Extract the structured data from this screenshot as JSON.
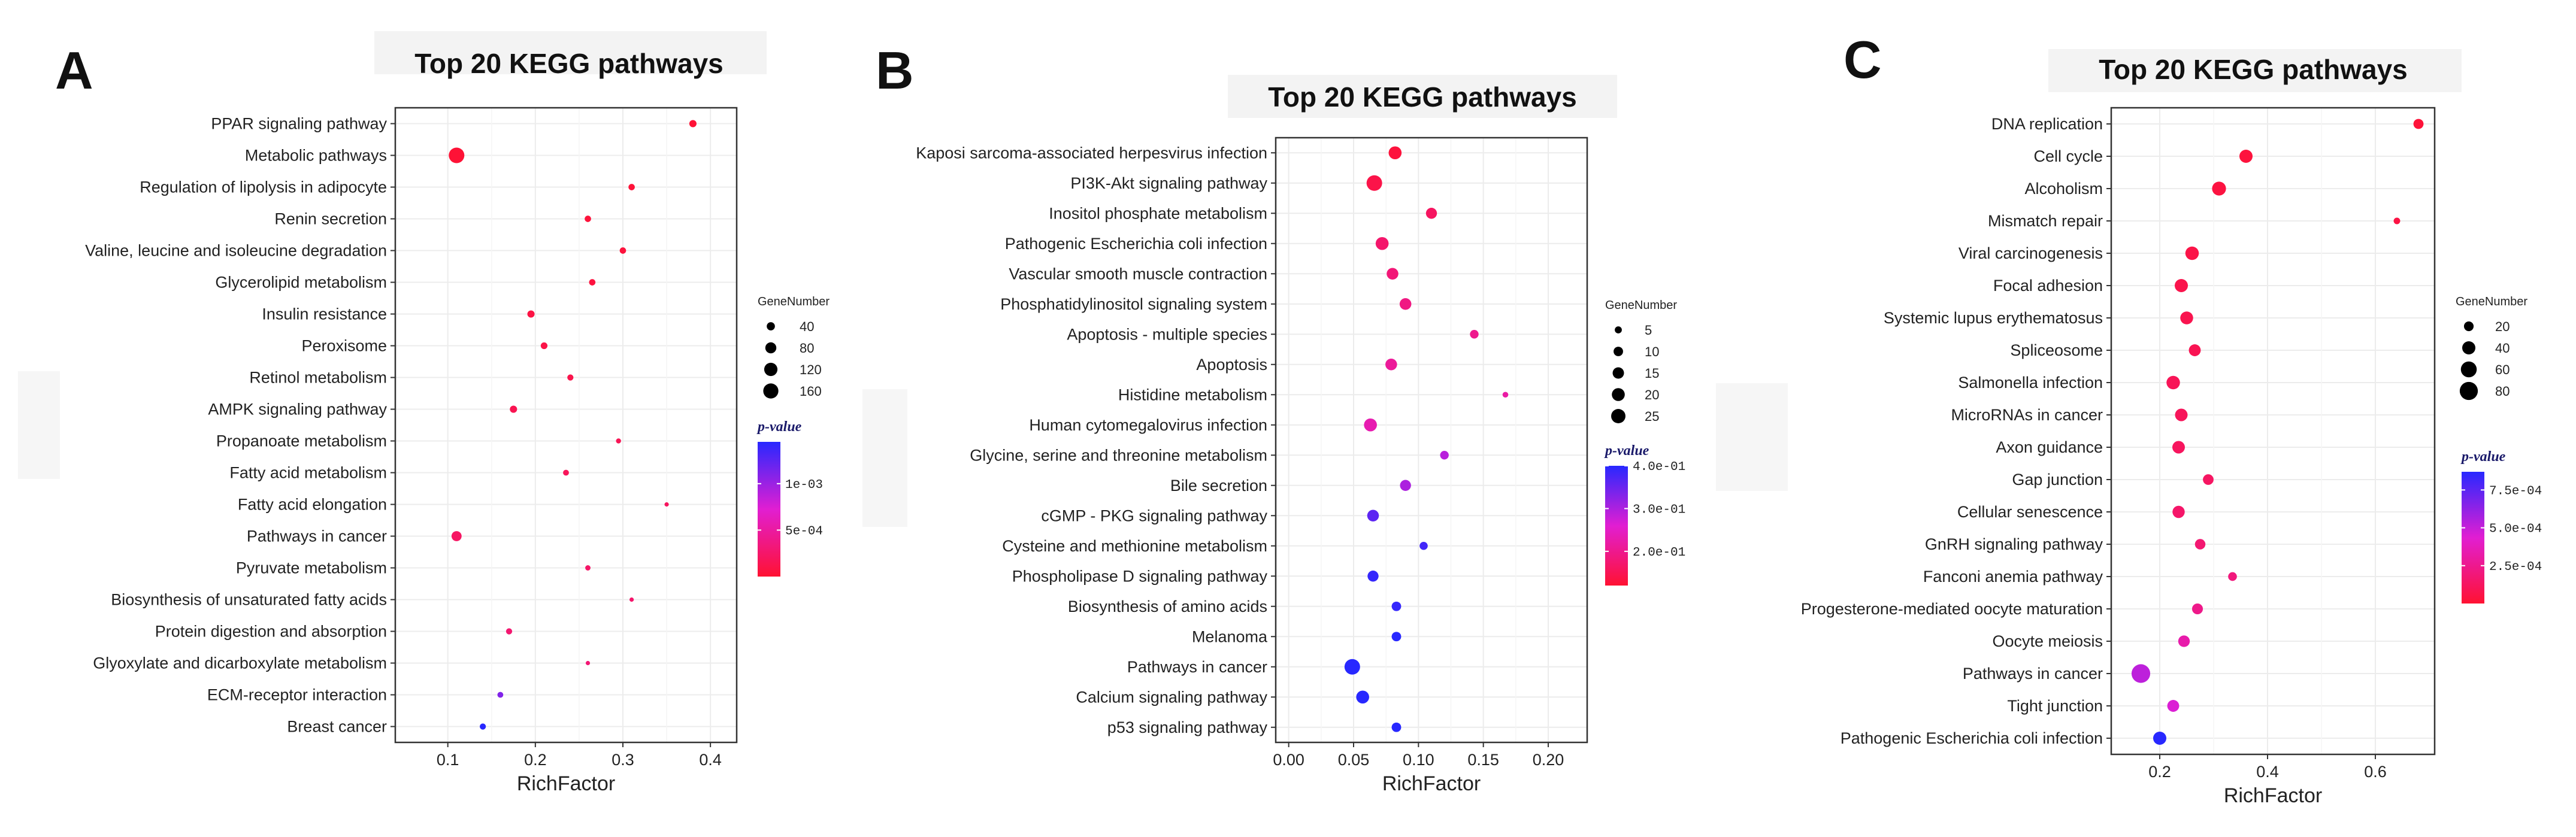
{
  "chart_data": [
    {
      "type": "scatter",
      "panel_label": "A",
      "title": "Top 20 KEGG pathways",
      "xlabel": "RichFactor",
      "ylabel": "",
      "xlim": [
        0.04,
        0.43
      ],
      "xticks": [
        "0.1",
        "0.2",
        "0.3",
        "0.4"
      ],
      "xtick_values": [
        0.1,
        0.2,
        0.3,
        0.4
      ],
      "size_legend": {
        "title": "GeneNumber",
        "values": [
          40,
          80,
          120,
          160
        ],
        "labels": [
          "40",
          "80",
          "120",
          "160"
        ]
      },
      "color_legend": {
        "title": "p-value",
        "min": 0,
        "max": 0.00145,
        "ticks": [
          0.0005,
          0.001
        ],
        "labels": [
          "5e-04",
          "1e-03"
        ]
      },
      "points": [
        {
          "pathway": "PPAR signaling pathway",
          "rich_factor": 0.38,
          "gene_number": 30,
          "p_value": 2e-05
        },
        {
          "pathway": "Metabolic pathways",
          "rich_factor": 0.11,
          "gene_number": 170,
          "p_value": 2e-05
        },
        {
          "pathway": "Regulation of lipolysis in adipocyte",
          "rich_factor": 0.31,
          "gene_number": 22,
          "p_value": 3e-05
        },
        {
          "pathway": "Renin secretion",
          "rich_factor": 0.26,
          "gene_number": 22,
          "p_value": 4e-05
        },
        {
          "pathway": "Valine, leucine and isoleucine degradation",
          "rich_factor": 0.3,
          "gene_number": 22,
          "p_value": 5e-05
        },
        {
          "pathway": "Glycerolipid metabolism",
          "rich_factor": 0.265,
          "gene_number": 22,
          "p_value": 6e-05
        },
        {
          "pathway": "Insulin resistance",
          "rich_factor": 0.195,
          "gene_number": 30,
          "p_value": 8e-05
        },
        {
          "pathway": "Peroxisome",
          "rich_factor": 0.21,
          "gene_number": 25,
          "p_value": 0.0001
        },
        {
          "pathway": "Retinol metabolism",
          "rich_factor": 0.24,
          "gene_number": 20,
          "p_value": 0.00012
        },
        {
          "pathway": "AMPK signaling pathway",
          "rich_factor": 0.175,
          "gene_number": 30,
          "p_value": 0.00014
        },
        {
          "pathway": "Propanoate metabolism",
          "rich_factor": 0.295,
          "gene_number": 12,
          "p_value": 0.00016
        },
        {
          "pathway": "Fatty acid metabolism",
          "rich_factor": 0.235,
          "gene_number": 18,
          "p_value": 0.00018
        },
        {
          "pathway": "Fatty acid elongation",
          "rich_factor": 0.35,
          "gene_number": 8,
          "p_value": 0.0002
        },
        {
          "pathway": "Pathways in cancer",
          "rich_factor": 0.11,
          "gene_number": 65,
          "p_value": 0.00022
        },
        {
          "pathway": "Pyruvate metabolism",
          "rich_factor": 0.26,
          "gene_number": 14,
          "p_value": 0.00024
        },
        {
          "pathway": "Biosynthesis of unsaturated fatty acids",
          "rich_factor": 0.31,
          "gene_number": 8,
          "p_value": 0.00026
        },
        {
          "pathway": "Protein digestion and absorption",
          "rich_factor": 0.17,
          "gene_number": 20,
          "p_value": 0.00028
        },
        {
          "pathway": "Glyoxylate and dicarboxylate metabolism",
          "rich_factor": 0.26,
          "gene_number": 8,
          "p_value": 0.0003
        },
        {
          "pathway": "ECM-receptor interaction",
          "rich_factor": 0.16,
          "gene_number": 18,
          "p_value": 0.0011
        },
        {
          "pathway": "Breast cancer",
          "rich_factor": 0.14,
          "gene_number": 20,
          "p_value": 0.00145
        }
      ]
    },
    {
      "type": "scatter",
      "panel_label": "B",
      "title": "Top 20 KEGG pathways",
      "xlabel": "RichFactor",
      "ylabel": "",
      "xlim": [
        -0.01,
        0.23
      ],
      "xticks": [
        "0.00",
        "0.05",
        "0.10",
        "0.15",
        "0.20"
      ],
      "xtick_values": [
        0,
        0.05,
        0.1,
        0.15,
        0.2
      ],
      "size_legend": {
        "title": "GeneNumber",
        "values": [
          5,
          10,
          15,
          20,
          25
        ],
        "labels": [
          "5",
          "10",
          "15",
          "20",
          "25"
        ]
      },
      "color_legend": {
        "title": "p-value",
        "min": 0.12,
        "max": 0.4,
        "ticks": [
          0.2,
          0.3,
          0.4
        ],
        "labels": [
          "2.0e-01",
          "3.0e-01",
          "4.0e-01"
        ]
      },
      "points": [
        {
          "pathway": "Kaposi sarcoma-associated herpesvirus infection",
          "rich_factor": 0.082,
          "gene_number": 20,
          "p_value": 0.13
        },
        {
          "pathway": "PI3K-Akt signaling pathway",
          "rich_factor": 0.066,
          "gene_number": 30,
          "p_value": 0.14
        },
        {
          "pathway": "Inositol phosphate metabolism",
          "rich_factor": 0.11,
          "gene_number": 14,
          "p_value": 0.16
        },
        {
          "pathway": "Pathogenic Escherichia coli infection",
          "rich_factor": 0.072,
          "gene_number": 20,
          "p_value": 0.17
        },
        {
          "pathway": "Vascular smooth muscle contraction",
          "rich_factor": 0.08,
          "gene_number": 16,
          "p_value": 0.18
        },
        {
          "pathway": "Phosphatidylinositol signaling system",
          "rich_factor": 0.09,
          "gene_number": 16,
          "p_value": 0.19
        },
        {
          "pathway": "Apoptosis - multiple species",
          "rich_factor": 0.143,
          "gene_number": 8,
          "p_value": 0.2
        },
        {
          "pathway": "Apoptosis",
          "rich_factor": 0.079,
          "gene_number": 16,
          "p_value": 0.21
        },
        {
          "pathway": "Histidine metabolism",
          "rich_factor": 0.167,
          "gene_number": 3,
          "p_value": 0.22
        },
        {
          "pathway": "Human cytomegalovirus infection",
          "rich_factor": 0.063,
          "gene_number": 20,
          "p_value": 0.23
        },
        {
          "pathway": "Glycine, serine and threonine metabolism",
          "rich_factor": 0.12,
          "gene_number": 8,
          "p_value": 0.29
        },
        {
          "pathway": "Bile secretion",
          "rich_factor": 0.09,
          "gene_number": 14,
          "p_value": 0.3
        },
        {
          "pathway": "cGMP - PKG signaling pathway",
          "rich_factor": 0.065,
          "gene_number": 16,
          "p_value": 0.36
        },
        {
          "pathway": "Cysteine and methionine metabolism",
          "rich_factor": 0.104,
          "gene_number": 7,
          "p_value": 0.38
        },
        {
          "pathway": "Phospholipase D signaling pathway",
          "rich_factor": 0.065,
          "gene_number": 14,
          "p_value": 0.39
        },
        {
          "pathway": "Biosynthesis of amino acids",
          "rich_factor": 0.083,
          "gene_number": 10,
          "p_value": 0.39
        },
        {
          "pathway": "Melanoma",
          "rich_factor": 0.083,
          "gene_number": 10,
          "p_value": 0.4
        },
        {
          "pathway": "Pathways in cancer",
          "rich_factor": 0.049,
          "gene_number": 30,
          "p_value": 0.4
        },
        {
          "pathway": "Calcium signaling pathway",
          "rich_factor": 0.057,
          "gene_number": 20,
          "p_value": 0.4
        },
        {
          "pathway": "p53 signaling pathway",
          "rich_factor": 0.083,
          "gene_number": 10,
          "p_value": 0.4
        }
      ]
    },
    {
      "type": "scatter",
      "panel_label": "C",
      "title": "Top 20 KEGG pathways",
      "xlabel": "RichFactor",
      "ylabel": "",
      "xlim": [
        0.11,
        0.71
      ],
      "xticks": [
        "0.2",
        "0.4",
        "0.6"
      ],
      "xtick_values": [
        0.2,
        0.4,
        0.6
      ],
      "size_legend": {
        "title": "GeneNumber",
        "values": [
          20,
          40,
          60,
          80
        ],
        "labels": [
          "20",
          "40",
          "60",
          "80"
        ]
      },
      "color_legend": {
        "title": "p-value",
        "min": 0,
        "max": 0.00087,
        "ticks": [
          0.00025,
          0.0005,
          0.00075
        ],
        "labels": [
          "2.5e-04",
          "5.0e-04",
          "7.5e-04"
        ]
      },
      "points": [
        {
          "pathway": "DNA replication",
          "rich_factor": 0.68,
          "gene_number": 22,
          "p_value": 2e-05
        },
        {
          "pathway": "Cell cycle",
          "rich_factor": 0.36,
          "gene_number": 40,
          "p_value": 3e-05
        },
        {
          "pathway": "Alcoholism",
          "rich_factor": 0.31,
          "gene_number": 45,
          "p_value": 4e-05
        },
        {
          "pathway": "Mismatch repair",
          "rich_factor": 0.64,
          "gene_number": 8,
          "p_value": 5e-05
        },
        {
          "pathway": "Viral carcinogenesis",
          "rich_factor": 0.26,
          "gene_number": 42,
          "p_value": 6e-05
        },
        {
          "pathway": "Focal adhesion",
          "rich_factor": 0.24,
          "gene_number": 40,
          "p_value": 7e-05
        },
        {
          "pathway": "Systemic lupus erythematosus",
          "rich_factor": 0.25,
          "gene_number": 38,
          "p_value": 8e-05
        },
        {
          "pathway": "Spliceosome",
          "rich_factor": 0.265,
          "gene_number": 32,
          "p_value": 9e-05
        },
        {
          "pathway": "Salmonella infection",
          "rich_factor": 0.225,
          "gene_number": 42,
          "p_value": 0.0001
        },
        {
          "pathway": "MicroRNAs in cancer",
          "rich_factor": 0.24,
          "gene_number": 36,
          "p_value": 0.00011
        },
        {
          "pathway": "Axon guidance",
          "rich_factor": 0.235,
          "gene_number": 36,
          "p_value": 0.00012
        },
        {
          "pathway": "Gap junction",
          "rich_factor": 0.29,
          "gene_number": 25,
          "p_value": 0.00013
        },
        {
          "pathway": "Cellular senescence",
          "rich_factor": 0.235,
          "gene_number": 34,
          "p_value": 0.00015
        },
        {
          "pathway": "GnRH signaling pathway",
          "rich_factor": 0.275,
          "gene_number": 24,
          "p_value": 0.00017
        },
        {
          "pathway": "Fanconi anemia pathway",
          "rich_factor": 0.335,
          "gene_number": 16,
          "p_value": 0.0002
        },
        {
          "pathway": "Progesterone-mediated oocyte maturation",
          "rich_factor": 0.27,
          "gene_number": 26,
          "p_value": 0.00024
        },
        {
          "pathway": "Oocyte meiosis",
          "rich_factor": 0.245,
          "gene_number": 30,
          "p_value": 0.00033
        },
        {
          "pathway": "Pathways in cancer",
          "rich_factor": 0.165,
          "gene_number": 85,
          "p_value": 0.00052
        },
        {
          "pathway": "Tight junction",
          "rich_factor": 0.225,
          "gene_number": 32,
          "p_value": 0.00045
        },
        {
          "pathway": "Pathogenic Escherichia coli infection",
          "rich_factor": 0.2,
          "gene_number": 40,
          "p_value": 0.00087
        }
      ]
    }
  ]
}
